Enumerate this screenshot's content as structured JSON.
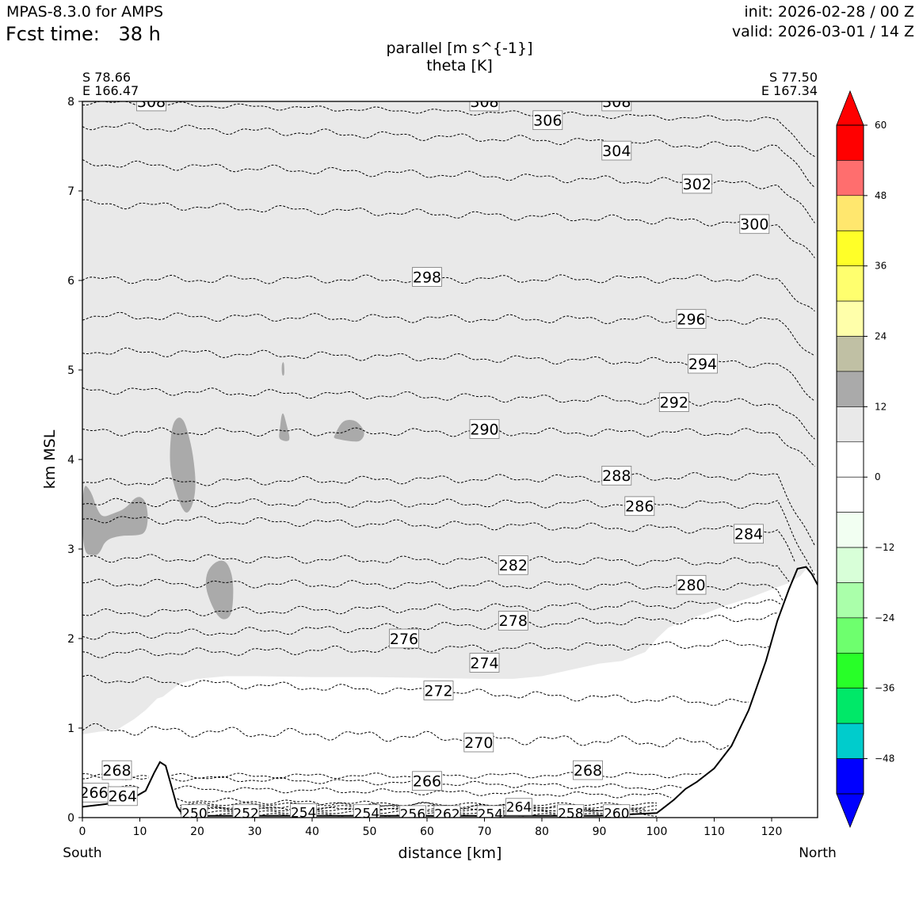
{
  "header": {
    "model": "MPAS-8.3.0 for AMPS",
    "fcst_label": "Fcst time:",
    "fcst_value": "38 h",
    "init": "init: 2026-02-28 / 00 Z",
    "valid": "valid: 2026-03-01 / 14 Z"
  },
  "chart_data": {
    "type": "cross-section-contour",
    "title_line1": "parallel [m s^{-1}]",
    "title_line2": "theta [K]",
    "xlabel": "distance [km]",
    "ylabel": "km MSL",
    "xlim": [
      0,
      128
    ],
    "ylim": [
      0,
      8
    ],
    "x_ticks": [
      0,
      10,
      20,
      30,
      40,
      50,
      60,
      70,
      80,
      90,
      100,
      110,
      120
    ],
    "y_ticks": [
      0,
      1,
      2,
      3,
      4,
      5,
      6,
      7,
      8
    ],
    "start_point": {
      "lat": "S 78.66",
      "lon": "E 166.47",
      "end_label": "South"
    },
    "end_point": {
      "lat": "S 77.50",
      "lon": "E 167.34",
      "end_label": "North"
    },
    "colorbar": {
      "ticks": [
        "60",
        "48",
        "36",
        "24",
        "12",
        "0",
        "−12",
        "−24",
        "−36",
        "−48"
      ],
      "tick_values": [
        60,
        48,
        36,
        24,
        12,
        0,
        -12,
        -24,
        -36,
        -48
      ],
      "bins_top_to_bottom": [
        {
          "from": 54,
          "to": 60,
          "color": "#ff0000"
        },
        {
          "from": 48,
          "to": 54,
          "color": "#ff6e6e"
        },
        {
          "from": 42,
          "to": 48,
          "color": "#ffe76e"
        },
        {
          "from": 36,
          "to": 42,
          "color": "#ffff28"
        },
        {
          "from": 30,
          "to": 36,
          "color": "#ffff6e"
        },
        {
          "from": 24,
          "to": 30,
          "color": "#ffffaa"
        },
        {
          "from": 18,
          "to": 24,
          "color": "#c0c0a4"
        },
        {
          "from": 12,
          "to": 18,
          "color": "#aaaaaa"
        },
        {
          "from": 6,
          "to": 12,
          "color": "#e9e9e9"
        },
        {
          "from": 0,
          "to": 6,
          "color": "#ffffff"
        },
        {
          "from": -6,
          "to": 0,
          "color": "#ffffff"
        },
        {
          "from": -12,
          "to": -6,
          "color": "#f2fff2"
        },
        {
          "from": -18,
          "to": -12,
          "color": "#d8ffd8"
        },
        {
          "from": -24,
          "to": -18,
          "color": "#aaffaa"
        },
        {
          "from": -30,
          "to": -24,
          "color": "#6eff6e"
        },
        {
          "from": -36,
          "to": -30,
          "color": "#28ff28"
        },
        {
          "from": -42,
          "to": -36,
          "color": "#00e868"
        },
        {
          "from": -48,
          "to": -42,
          "color": "#00cccc"
        },
        {
          "from": -54,
          "to": -48,
          "color": "#0000ff"
        }
      ],
      "over_color": "#ff0000",
      "under_color": "#0000ff"
    },
    "terrain": {
      "x": [
        0,
        4,
        8,
        11,
        12.5,
        13.5,
        14.5,
        15.5,
        16.5,
        17.5,
        18.5,
        20,
        30,
        40,
        50,
        60,
        70,
        80,
        90,
        100,
        101,
        103,
        105,
        107,
        110,
        113,
        116,
        119,
        121,
        123,
        124.5,
        126,
        127,
        128
      ],
      "y": [
        0.12,
        0.15,
        0.19,
        0.3,
        0.5,
        0.62,
        0.58,
        0.35,
        0.12,
        0.03,
        0.02,
        0.02,
        0.02,
        0.02,
        0.02,
        0.02,
        0.02,
        0.02,
        0.02,
        0.05,
        0.1,
        0.2,
        0.32,
        0.4,
        0.55,
        0.8,
        1.2,
        1.75,
        2.2,
        2.55,
        2.78,
        2.8,
        2.72,
        2.6
      ]
    },
    "theta_contours": [
      {
        "level": 266,
        "y0": 0.22,
        "y1": 0.05,
        "wave": 0.02,
        "label_x": 2,
        "label_y": 0.28
      },
      {
        "level": 268,
        "y0": 0.46,
        "y1": 0.3,
        "wave": 0.02,
        "label_x": 6,
        "label_y": 0.53
      },
      {
        "level": 264,
        "y0": 0.12,
        "y1": 0.05,
        "wave": 0.01,
        "label_x": 7,
        "label_y": 0.24
      },
      {
        "level": 266,
        "y0": 0.34,
        "y1": 0.22,
        "wave": 0.02,
        "label_x": 60,
        "label_y": 0.41
      },
      {
        "level": 268,
        "y0": 0.46,
        "y1": 0.48,
        "wave": 0.02,
        "label_x": 88,
        "label_y": 0.53
      },
      {
        "level": 270,
        "y0": 0.99,
        "y1": 0.8,
        "wave": 0.04,
        "label_x": 69,
        "label_y": 0.84
      },
      {
        "level": 272,
        "y0": 1.55,
        "y1": 1.25,
        "wave": 0.03,
        "label_x": 62,
        "label_y": 1.42
      },
      {
        "level": 274,
        "y0": 1.83,
        "y1": 1.95,
        "wave": 0.03,
        "label_x": 70,
        "label_y": 1.73
      },
      {
        "level": 276,
        "y0": 2.03,
        "y1": 2.25,
        "wave": 0.03,
        "label_x": 56,
        "label_y": 2.0
      },
      {
        "level": 278,
        "y0": 2.28,
        "y1": 2.4,
        "wave": 0.03,
        "label_x": 75,
        "label_y": 2.2
      },
      {
        "level": 280,
        "y0": 2.62,
        "y1": 2.58,
        "wave": 0.03,
        "label_x": 106,
        "label_y": 2.6
      },
      {
        "level": 282,
        "y0": 2.9,
        "y1": 2.85,
        "wave": 0.03,
        "label_x": 75,
        "label_y": 2.82
      },
      {
        "level": 284,
        "y0": 3.34,
        "y1": 3.2,
        "wave": 0.03,
        "label_x": 116,
        "label_y": 3.17
      },
      {
        "level": 286,
        "y0": 3.52,
        "y1": 3.5,
        "wave": 0.03,
        "label_x": 97,
        "label_y": 3.48
      },
      {
        "level": 288,
        "y0": 3.74,
        "y1": 3.82,
        "wave": 0.03,
        "label_x": 93,
        "label_y": 3.82
      },
      {
        "level": 290,
        "y0": 4.31,
        "y1": 4.3,
        "wave": 0.03,
        "label_x": 70,
        "label_y": 4.34
      },
      {
        "level": 292,
        "y0": 4.78,
        "y1": 4.62,
        "wave": 0.03,
        "label_x": 103,
        "label_y": 4.64
      },
      {
        "level": 294,
        "y0": 5.21,
        "y1": 5.06,
        "wave": 0.03,
        "label_x": 108,
        "label_y": 5.07
      },
      {
        "level": 296,
        "y0": 5.6,
        "y1": 5.55,
        "wave": 0.03,
        "label_x": 106,
        "label_y": 5.57
      },
      {
        "level": 298,
        "y0": 6.01,
        "y1": 6.02,
        "wave": 0.03,
        "label_x": 60,
        "label_y": 6.04
      },
      {
        "level": 300,
        "y0": 6.86,
        "y1": 6.62,
        "wave": 0.03,
        "label_x": 117,
        "label_y": 6.63
      },
      {
        "level": 302,
        "y0": 7.31,
        "y1": 7.05,
        "wave": 0.03,
        "label_x": 107,
        "label_y": 7.08
      },
      {
        "level": 304,
        "y0": 7.73,
        "y1": 7.47,
        "wave": 0.03,
        "label_x": 93,
        "label_y": 7.45
      },
      {
        "level": 306,
        "y0": 7.99,
        "y1": 7.78,
        "wave": 0.02,
        "label_x": 81,
        "label_y": 7.79
      },
      {
        "level": 308,
        "y0": 8.02,
        "y1": 8.02,
        "wave": 0.0,
        "label_x": 12,
        "label_y": 8.0
      },
      {
        "level": 308,
        "y0": 8.02,
        "y1": 8.02,
        "wave": 0.0,
        "label_x": 70,
        "label_y": 8.0
      },
      {
        "level": 308,
        "y0": 8.02,
        "y1": 8.02,
        "wave": 0.0,
        "label_x": 93,
        "label_y": 8.0
      }
    ],
    "low_level_labels": [
      {
        "level": 250,
        "x": 19.5,
        "y": 0.05
      },
      {
        "level": 252,
        "x": 28.5,
        "y": 0.05
      },
      {
        "level": 254,
        "x": 38.5,
        "y": 0.06
      },
      {
        "level": 254,
        "x": 49.5,
        "y": 0.05
      },
      {
        "level": 256,
        "x": 57.5,
        "y": 0.04
      },
      {
        "level": 262,
        "x": 63.5,
        "y": 0.04
      },
      {
        "level": 254,
        "x": 71,
        "y": 0.04
      },
      {
        "level": 264,
        "x": 76,
        "y": 0.12
      },
      {
        "level": 258,
        "x": 85,
        "y": 0.05
      },
      {
        "level": 260,
        "x": 93,
        "y": 0.05
      }
    ],
    "wind_shading": {
      "light_band_range": "6 to 12 m s^{-1}",
      "dark_blob_range": "12 to 18 m s^{-1}",
      "light_bottom": {
        "x": [
          0,
          3,
          6,
          7,
          9,
          11,
          13,
          14,
          15,
          16,
          17,
          20,
          25,
          30,
          40,
          50,
          60,
          70,
          75,
          80,
          85,
          90,
          94,
          96,
          98,
          100,
          102,
          104,
          108,
          112,
          116,
          120,
          123,
          125,
          126.2
        ],
        "y": [
          0.93,
          0.96,
          0.98,
          1.02,
          1.1,
          1.2,
          1.33,
          1.35,
          1.4,
          1.45,
          1.5,
          1.55,
          1.58,
          1.58,
          1.57,
          1.57,
          1.56,
          1.55,
          1.55,
          1.58,
          1.65,
          1.72,
          1.75,
          1.8,
          1.85,
          2.0,
          2.12,
          2.18,
          2.27,
          2.37,
          2.45,
          2.55,
          2.62,
          2.7,
          2.79
        ]
      },
      "dark_blobs": [
        {
          "x": [
            0,
            1.5,
            2.5,
            3.5,
            5.5,
            7.5,
            9.5,
            11,
            11.5,
            11,
            9.5,
            6.5,
            4,
            3,
            2,
            0
          ],
          "y": [
            3.75,
            3.65,
            3.45,
            3.35,
            3.4,
            3.45,
            3.6,
            3.55,
            3.35,
            3.18,
            3.15,
            3.15,
            3.1,
            2.95,
            2.92,
            2.96
          ]
        },
        {
          "x": [
            15.2,
            15.6,
            16.6,
            17.6,
            18.4,
            19.3,
            19.8,
            19.3,
            18.2,
            17.1,
            16.1,
            15.3
          ],
          "y": [
            4.1,
            4.38,
            4.48,
            4.45,
            4.3,
            4.05,
            3.72,
            3.5,
            3.38,
            3.48,
            3.68,
            3.88
          ]
        },
        {
          "x": [
            21.7,
            23,
            24.4,
            25.4,
            26.2,
            26.3,
            25.9,
            24.5,
            23.2,
            22,
            21.4
          ],
          "y": [
            2.75,
            2.85,
            2.88,
            2.83,
            2.68,
            2.45,
            2.25,
            2.2,
            2.28,
            2.45,
            2.6
          ]
        },
        {
          "x": [
            34.3,
            34.8,
            35.6,
            36.2,
            35.5,
            34.5,
            34.2
          ],
          "y": [
            4.3,
            4.57,
            4.38,
            4.22,
            4.2,
            4.22,
            4.25
          ]
        },
        {
          "x": [
            43.9,
            45.1,
            46.5,
            48,
            49.3,
            48.5,
            47,
            45,
            43.7
          ],
          "y": [
            4.27,
            4.42,
            4.45,
            4.42,
            4.3,
            4.2,
            4.2,
            4.22,
            4.24
          ]
        },
        {
          "x": [
            34.7,
            35.1,
            35.2,
            34.9,
            34.7
          ],
          "y": [
            5.07,
            5.1,
            4.95,
            4.93,
            4.97
          ]
        }
      ]
    }
  }
}
